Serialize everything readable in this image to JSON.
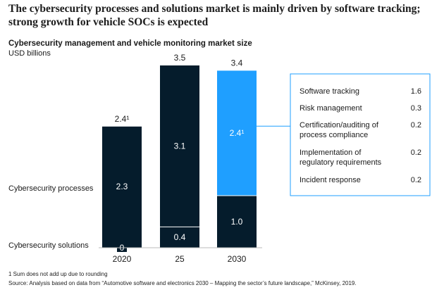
{
  "headline": "The cybersecurity processes and solutions market is mainly driven by software tracking; strong growth for vehicle SOCs is expected",
  "subtitle": "Cybersecurity management and vehicle monitoring market size",
  "unit": "USD billions",
  "footnote": "1  Sum does not add up due to rounding",
  "source": "Source: Analysis based on data from “Automotive software and electronics 2030 – Mapping the sector’s future landscape,” McKinsey, 2019.",
  "colors": {
    "dark": "#051c2c",
    "accent": "#1f9fff",
    "breakdown_border": "#1f9fff"
  },
  "chart_data": {
    "type": "bar",
    "stacked": true,
    "categories": [
      "2020",
      "25",
      "2030"
    ],
    "series": [
      {
        "name": "Cybersecurity solutions",
        "values": [
          0,
          0.4,
          1.0
        ],
        "labels": [
          "0",
          "0.4",
          "1.0"
        ]
      },
      {
        "name": "Cybersecurity processes",
        "values": [
          2.3,
          3.1,
          2.4
        ],
        "labels": [
          "2.3",
          "3.1",
          "2.4¹"
        ]
      }
    ],
    "totals": [
      "2.4¹",
      "3.5",
      "3.4"
    ],
    "breakdown_2030": [
      {
        "label": "Software tracking",
        "value": "1.6"
      },
      {
        "label": "Risk management",
        "value": "0.3"
      },
      {
        "label": "Certification/auditing of process compliance",
        "value": "0.2"
      },
      {
        "label": "Implementation of regulatory requirements",
        "value": "0.2"
      },
      {
        "label": "Incident response",
        "value": "0.2"
      }
    ]
  }
}
